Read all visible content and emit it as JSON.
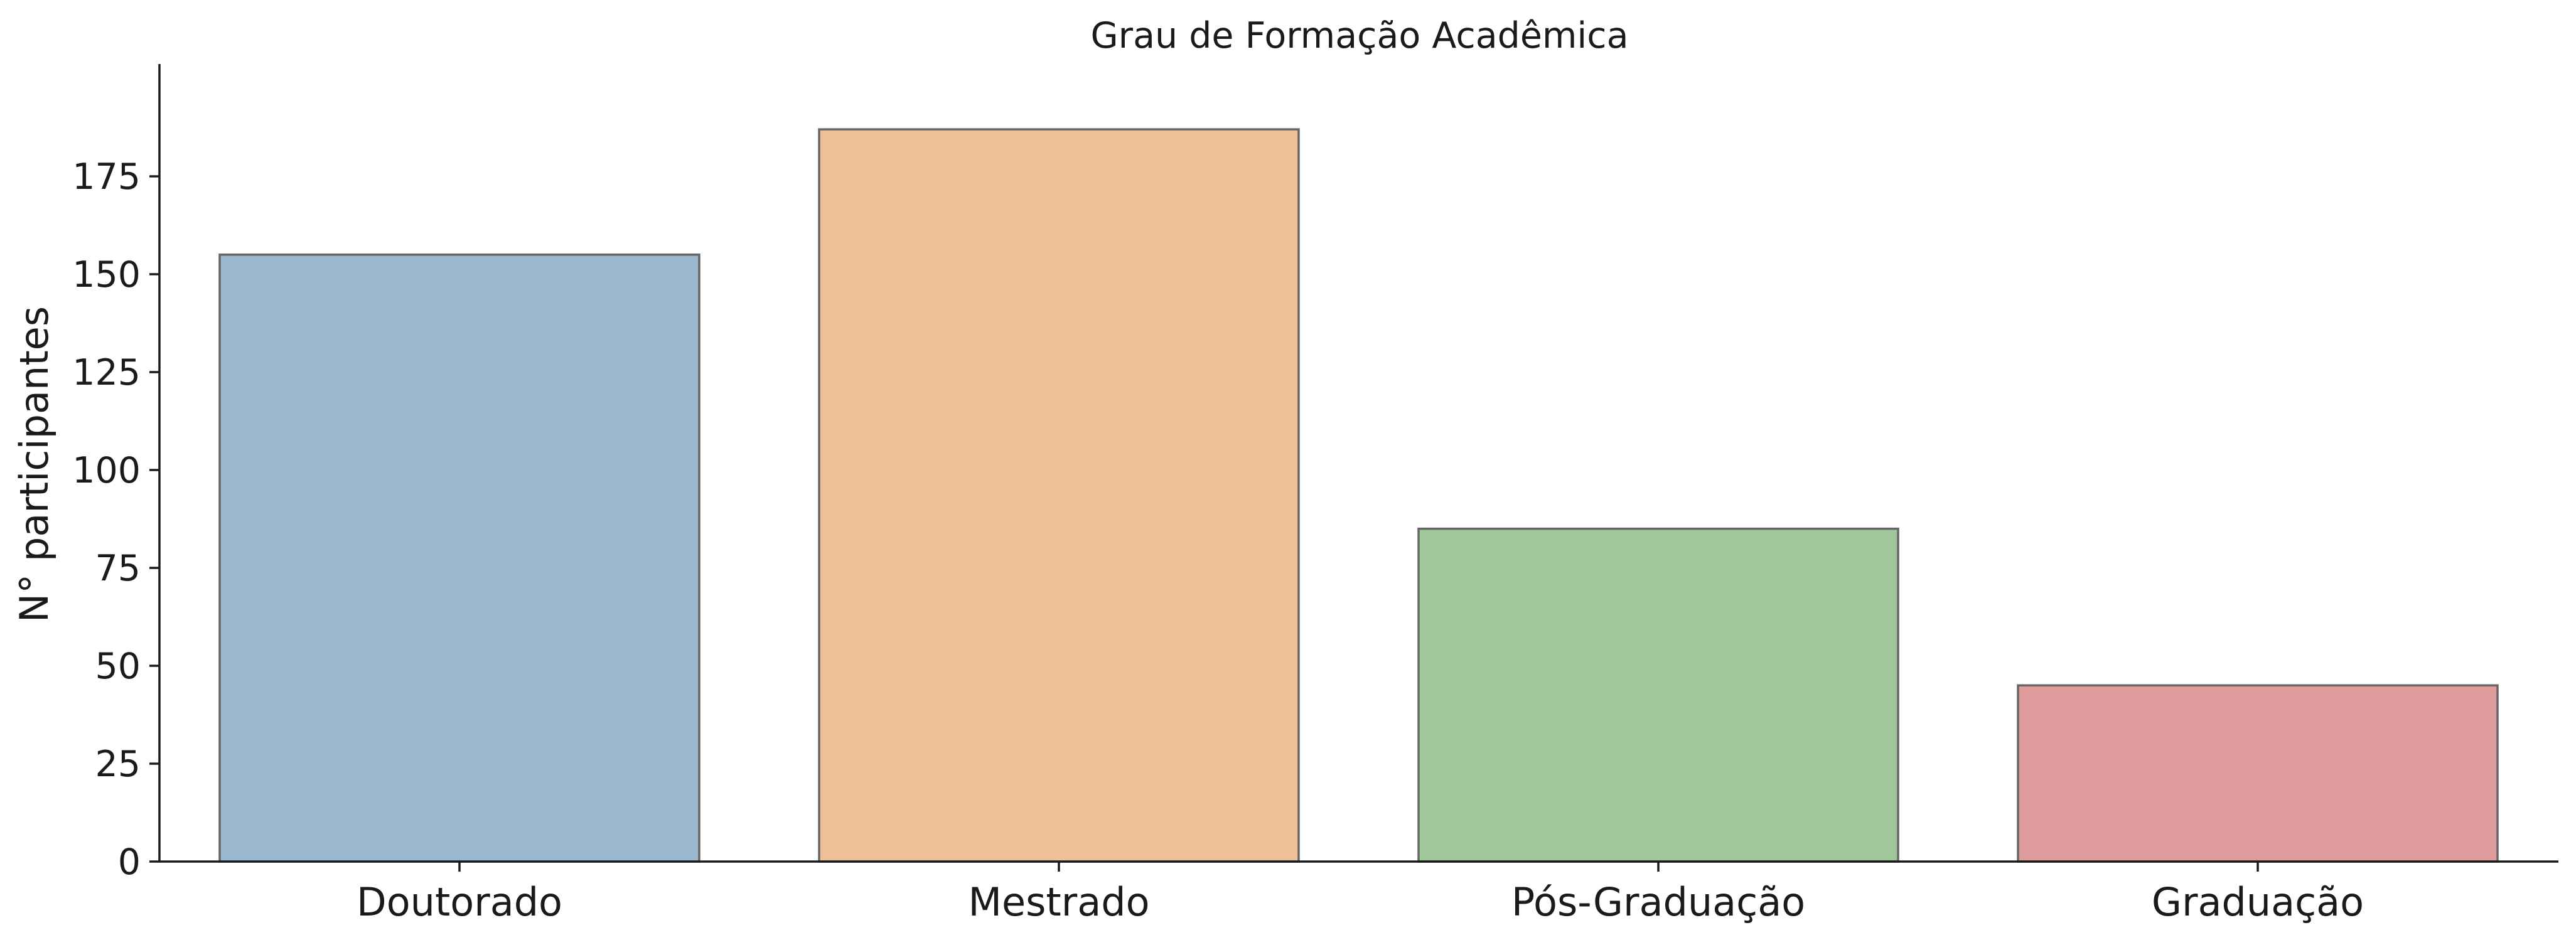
{
  "chart_data": {
    "type": "bar",
    "title": "Grau de Formação Acadêmica",
    "xlabel": "",
    "ylabel": "N° participantes",
    "categories": [
      "Doutorado",
      "Mestrado",
      "Pós-Graduação",
      "Graduação"
    ],
    "values": [
      155,
      187,
      85,
      45
    ],
    "ylim": [
      0,
      196
    ],
    "yticks": [
      0,
      25,
      50,
      75,
      100,
      125,
      150,
      175
    ],
    "colors": [
      "#9ab9d1",
      "#efc097",
      "#9fc79b",
      "#df9c9c"
    ],
    "bar_edge_color": "#666666",
    "grid": false,
    "legend": "none"
  }
}
